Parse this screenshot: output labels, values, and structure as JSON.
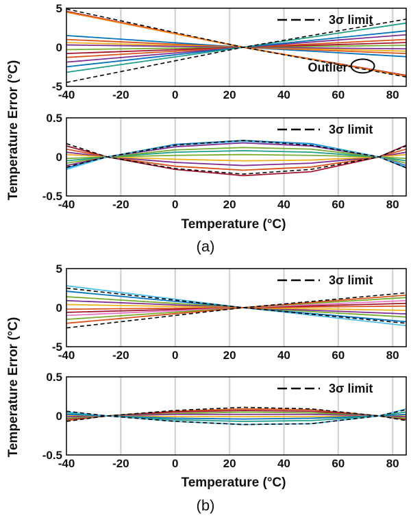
{
  "panels": [
    {
      "label": "(a)",
      "xlabel": "Temperature (°C)"
    },
    {
      "label": "(b)",
      "xlabel": "Temperature (°C)"
    }
  ],
  "ylabel": "Temperature Error (°C)",
  "colors": [
    "#0072bd",
    "#d95319",
    "#edb120",
    "#7e2f8e",
    "#77ac30",
    "#4dbeee",
    "#a2142f",
    "#ff7f0e",
    "#1f9e89",
    "#e377c2"
  ],
  "chart_data": [
    {
      "type": "line",
      "panel": "(a)",
      "xlabel": "",
      "ylabel": "Temperature Error (°C)",
      "xlim": [
        -40,
        85
      ],
      "ylim": [
        -5,
        5
      ],
      "xticks": [
        "-40",
        "-20",
        "0",
        "20",
        "40",
        "60",
        "80"
      ],
      "yticks": [
        "5",
        "0",
        "-5"
      ],
      "grid": "vertical",
      "legend": {
        "label": "3σ limit",
        "position": "top-right"
      },
      "annotation": {
        "text": "Outlier",
        "x": 69,
        "y": -2.4
      },
      "x": [
        -40,
        25,
        85
      ],
      "series": [
        {
          "values": [
            4.6,
            0,
            -3.6
          ],
          "color": "#a2142f"
        },
        {
          "values": [
            1.5,
            0,
            -1.2
          ],
          "color": "#0072bd"
        },
        {
          "values": [
            1.0,
            0,
            -0.8
          ],
          "color": "#d95319"
        },
        {
          "values": [
            0.6,
            0,
            -0.5
          ],
          "color": "#edb120"
        },
        {
          "values": [
            0.3,
            0,
            -0.2
          ],
          "color": "#7e2f8e"
        },
        {
          "values": [
            -0.3,
            0,
            0.25
          ],
          "color": "#77ac30"
        },
        {
          "values": [
            -0.8,
            0,
            0.6
          ],
          "color": "#a2142f"
        },
        {
          "values": [
            -1.3,
            0,
            1.0
          ],
          "color": "#d95319"
        },
        {
          "values": [
            -1.9,
            0,
            1.6
          ],
          "color": "#7e2f8e"
        },
        {
          "values": [
            -2.5,
            0,
            2.1
          ],
          "color": "#0072bd"
        },
        {
          "values": [
            -3.2,
            0,
            3.1
          ],
          "color": "#1f9e89"
        }
      ],
      "limits": [
        {
          "values": [
            4.9,
            0,
            -3.8
          ]
        },
        {
          "values": [
            -4.5,
            0,
            3.6
          ]
        }
      ],
      "outlier": {
        "values": [
          4.5,
          0,
          -3.7
        ],
        "color": "#ff7f0e"
      }
    },
    {
      "type": "line",
      "panel": "(a)",
      "xlabel": "Temperature (°C)",
      "ylabel": "",
      "xlim": [
        -40,
        85
      ],
      "ylim": [
        -0.5,
        0.5
      ],
      "xticks": [
        "-40",
        "-20",
        "0",
        "20",
        "40",
        "60",
        "80"
      ],
      "yticks": [
        "0.5",
        "0",
        "-0.5"
      ],
      "grid": "vertical",
      "legend": {
        "label": "3σ limit",
        "position": "top-right"
      },
      "x": [
        -40,
        -25,
        0,
        25,
        50,
        75,
        85
      ],
      "series": [
        {
          "values": [
            0.14,
            0,
            -0.16,
            -0.24,
            -0.19,
            0,
            0.15
          ],
          "color": "#a2142f"
        },
        {
          "values": [
            0.1,
            0,
            -0.12,
            -0.17,
            -0.13,
            0,
            0.1
          ],
          "color": "#d95319"
        },
        {
          "values": [
            0.06,
            0,
            -0.07,
            -0.11,
            -0.08,
            0,
            0.06
          ],
          "color": "#7e2f8e"
        },
        {
          "values": [
            0.03,
            0,
            -0.03,
            -0.05,
            -0.04,
            0,
            0.03
          ],
          "color": "#edb120"
        },
        {
          "values": [
            -0.02,
            0,
            0.02,
            0.03,
            0.02,
            0,
            -0.02
          ],
          "color": "#77ac30"
        },
        {
          "values": [
            -0.05,
            0,
            0.06,
            0.08,
            0.06,
            0,
            -0.05
          ],
          "color": "#1f9e89"
        },
        {
          "values": [
            -0.08,
            0,
            0.09,
            0.12,
            0.1,
            0,
            -0.08
          ],
          "color": "#77ac30"
        },
        {
          "values": [
            -0.11,
            0,
            0.13,
            0.18,
            0.14,
            0,
            -0.11
          ],
          "color": "#7e2f8e"
        },
        {
          "values": [
            -0.14,
            0,
            0.16,
            0.21,
            0.17,
            0,
            -0.14
          ],
          "color": "#0072bd"
        },
        {
          "values": [
            -0.16,
            0,
            0.15,
            0.2,
            0.16,
            0,
            -0.12
          ],
          "color": "#4dbeee"
        }
      ],
      "limits": [
        {
          "values": [
            0.17,
            0,
            0.15,
            0.21,
            0.15,
            0,
            -0.14
          ]
        },
        {
          "values": [
            -0.13,
            0,
            -0.15,
            -0.22,
            -0.16,
            0,
            0.14
          ]
        }
      ]
    },
    {
      "type": "line",
      "panel": "(b)",
      "xlabel": "",
      "ylabel": "Temperature Error (°C)",
      "xlim": [
        -40,
        85
      ],
      "ylim": [
        -5,
        5
      ],
      "xticks": [
        "-40",
        "-20",
        "0",
        "20",
        "40",
        "60",
        "80"
      ],
      "yticks": [
        "5",
        "0",
        "-5"
      ],
      "grid": "vertical",
      "legend": {
        "label": "3σ limit",
        "position": "top-right"
      },
      "x": [
        -40,
        25,
        85
      ],
      "series": [
        {
          "values": [
            2.8,
            0,
            -2.3
          ],
          "color": "#4dbeee"
        },
        {
          "values": [
            2.1,
            0,
            -1.8
          ],
          "color": "#0072bd"
        },
        {
          "values": [
            1.4,
            0,
            -1.2
          ],
          "color": "#77ac30"
        },
        {
          "values": [
            0.9,
            0,
            -0.8
          ],
          "color": "#7e2f8e"
        },
        {
          "values": [
            0.4,
            0,
            -0.35
          ],
          "color": "#edb120"
        },
        {
          "values": [
            -0.2,
            0,
            0.2
          ],
          "color": "#d95319"
        },
        {
          "values": [
            -0.6,
            0,
            0.55
          ],
          "color": "#a2142f"
        },
        {
          "values": [
            -1.0,
            0,
            0.9
          ],
          "color": "#e377c2"
        },
        {
          "values": [
            -1.5,
            0,
            1.3
          ],
          "color": "#77ac30"
        },
        {
          "values": [
            -2.0,
            0,
            1.6
          ],
          "color": "#d95319"
        }
      ],
      "limits": [
        {
          "values": [
            2.5,
            0,
            -2.0
          ]
        },
        {
          "values": [
            -2.6,
            0,
            1.9
          ]
        }
      ]
    },
    {
      "type": "line",
      "panel": "(b)",
      "xlabel": "Temperature (°C)",
      "ylabel": "",
      "xlim": [
        -40,
        85
      ],
      "ylim": [
        -0.5,
        0.5
      ],
      "xticks": [
        "-40",
        "-20",
        "0",
        "20",
        "40",
        "60",
        "80"
      ],
      "yticks": [
        "0.5",
        "0",
        "-0.5"
      ],
      "grid": "vertical",
      "legend": {
        "label": "3σ limit",
        "position": "top-right"
      },
      "x": [
        -40,
        -25,
        0,
        25,
        50,
        75,
        85
      ],
      "series": [
        {
          "values": [
            -0.06,
            0,
            0.06,
            0.09,
            0.08,
            0,
            -0.05
          ],
          "color": "#d95319"
        },
        {
          "values": [
            -0.04,
            0,
            0.05,
            0.07,
            0.06,
            0,
            -0.04
          ],
          "color": "#a2142f"
        },
        {
          "values": [
            -0.03,
            0,
            0.03,
            0.05,
            0.04,
            0,
            -0.03
          ],
          "color": "#77ac30"
        },
        {
          "values": [
            -0.01,
            0,
            0.02,
            0.02,
            0.02,
            0,
            -0.01
          ],
          "color": "#7e2f8e"
        },
        {
          "values": [
            0.01,
            0,
            -0.01,
            -0.01,
            -0.01,
            0,
            0.01
          ],
          "color": "#edb120"
        },
        {
          "values": [
            0.02,
            0,
            -0.03,
            -0.04,
            -0.03,
            0,
            0.02
          ],
          "color": "#0072bd"
        },
        {
          "values": [
            0.04,
            0,
            -0.05,
            -0.07,
            -0.06,
            0,
            0.05
          ],
          "color": "#1f9e89"
        },
        {
          "values": [
            0.05,
            0,
            -0.07,
            -0.11,
            -0.1,
            0,
            0.09
          ],
          "color": "#4dbeee"
        }
      ],
      "limits": [
        {
          "values": [
            -0.07,
            0,
            0.07,
            0.11,
            0.09,
            0,
            -0.06
          ]
        },
        {
          "values": [
            0.06,
            0,
            -0.07,
            -0.11,
            -0.1,
            0,
            0.08
          ]
        }
      ]
    }
  ]
}
